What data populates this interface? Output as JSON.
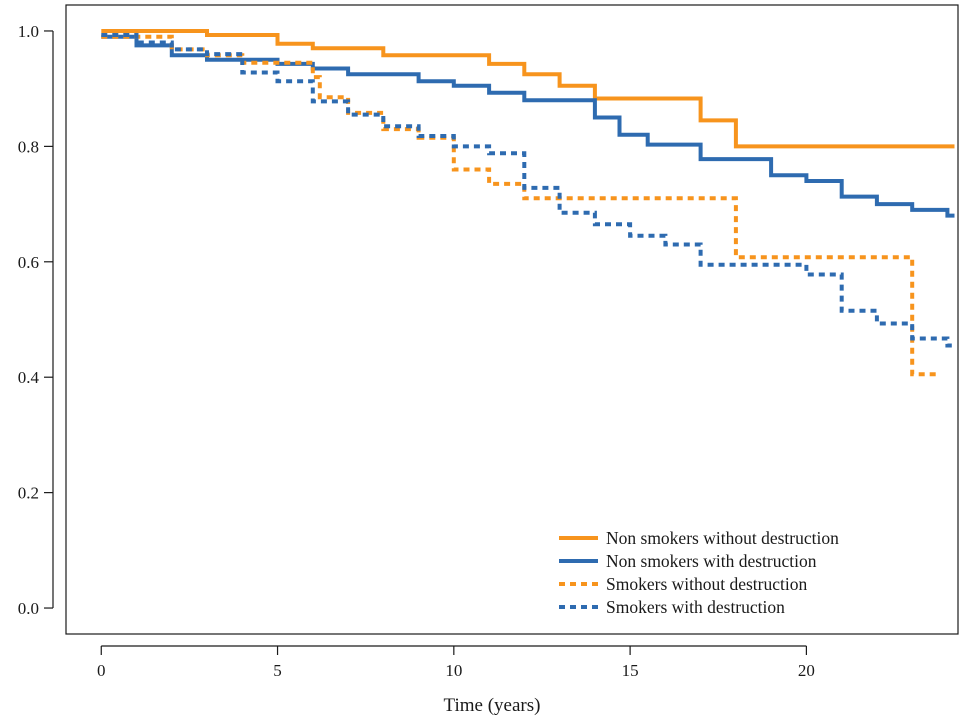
{
  "chart_data": {
    "type": "line",
    "step": true,
    "title": "",
    "xlabel": "Time (years)",
    "ylabel": "",
    "xlim": [
      -1,
      24.3
    ],
    "ylim": [
      -0.045,
      1.045
    ],
    "xticks": [
      0,
      5,
      10,
      15,
      20
    ],
    "xtick_labels": [
      "0",
      "5",
      "10",
      "15",
      "20"
    ],
    "yticks": [
      0.0,
      0.2,
      0.4,
      0.6,
      0.8,
      1.0
    ],
    "ytick_labels": [
      "0.0",
      "0.2",
      "0.4",
      "0.6",
      "0.8",
      "1.0"
    ],
    "grid": false,
    "legend_position": "bottom-right",
    "series": [
      {
        "name": "Non smokers without destruction",
        "color": "#F7941D",
        "dash": "solid",
        "points": [
          [
            0,
            1.0
          ],
          [
            3,
            0.993
          ],
          [
            5,
            0.978
          ],
          [
            6,
            0.97
          ],
          [
            8,
            0.958
          ],
          [
            11,
            0.943
          ],
          [
            12,
            0.925
          ],
          [
            13,
            0.905
          ],
          [
            14,
            0.883
          ],
          [
            17,
            0.845
          ],
          [
            18,
            0.8
          ],
          [
            24.2,
            0.8
          ]
        ]
      },
      {
        "name": "Non smokers with destruction",
        "color": "#2E6BB0",
        "dash": "solid",
        "points": [
          [
            0,
            0.99
          ],
          [
            1,
            0.975
          ],
          [
            2,
            0.958
          ],
          [
            3,
            0.95
          ],
          [
            5,
            0.943
          ],
          [
            6,
            0.935
          ],
          [
            7,
            0.925
          ],
          [
            9,
            0.913
          ],
          [
            10,
            0.905
          ],
          [
            11,
            0.893
          ],
          [
            12,
            0.88
          ],
          [
            14,
            0.85
          ],
          [
            14.7,
            0.82
          ],
          [
            15.5,
            0.803
          ],
          [
            17,
            0.778
          ],
          [
            19,
            0.75
          ],
          [
            20,
            0.74
          ],
          [
            21,
            0.713
          ],
          [
            22,
            0.7
          ],
          [
            23,
            0.69
          ],
          [
            24,
            0.68
          ],
          [
            24.2,
            0.68
          ]
        ]
      },
      {
        "name": "Smokers without destruction",
        "color": "#F7941D",
        "dash": "dotted",
        "points": [
          [
            0,
            0.99
          ],
          [
            2,
            0.968
          ],
          [
            3,
            0.958
          ],
          [
            4,
            0.945
          ],
          [
            6,
            0.92
          ],
          [
            6.2,
            0.885
          ],
          [
            7,
            0.858
          ],
          [
            8,
            0.83
          ],
          [
            9,
            0.815
          ],
          [
            10,
            0.76
          ],
          [
            11,
            0.735
          ],
          [
            12,
            0.71
          ],
          [
            18,
            0.608
          ],
          [
            23,
            0.405
          ],
          [
            23.8,
            0.405
          ]
        ]
      },
      {
        "name": "Smokers with destruction",
        "color": "#2E6BB0",
        "dash": "dotted",
        "points": [
          [
            0,
            0.993
          ],
          [
            1,
            0.98
          ],
          [
            2,
            0.968
          ],
          [
            3,
            0.96
          ],
          [
            4,
            0.928
          ],
          [
            5,
            0.913
          ],
          [
            6,
            0.878
          ],
          [
            7,
            0.855
          ],
          [
            8,
            0.835
          ],
          [
            9,
            0.818
          ],
          [
            10,
            0.8
          ],
          [
            11,
            0.788
          ],
          [
            12,
            0.728
          ],
          [
            13,
            0.685
          ],
          [
            14,
            0.665
          ],
          [
            15,
            0.645
          ],
          [
            16,
            0.63
          ],
          [
            17,
            0.595
          ],
          [
            20,
            0.578
          ],
          [
            21,
            0.515
          ],
          [
            22,
            0.493
          ],
          [
            23,
            0.467
          ],
          [
            24,
            0.455
          ],
          [
            24.2,
            0.455
          ]
        ]
      }
    ]
  }
}
